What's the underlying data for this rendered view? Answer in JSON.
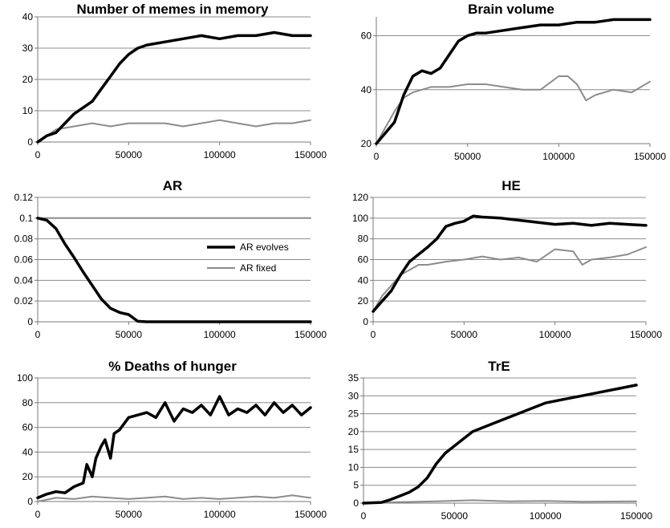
{
  "series_colors": {
    "evolves": "#000000",
    "fixed": "#8c8c8c"
  },
  "chart_data": [
    {
      "type": "line",
      "title": "Number of memes in memory",
      "xlim": [
        0,
        150000
      ],
      "ylim": [
        0,
        40
      ],
      "xticks": [
        0,
        50000,
        100000,
        150000
      ],
      "yticks": [
        0,
        10,
        20,
        30,
        40
      ],
      "ytick_labels": [
        "0",
        "10",
        "20",
        "30",
        "40"
      ],
      "grid": true,
      "series": [
        {
          "key": "evolves",
          "x": [
            0,
            5000,
            10000,
            15000,
            20000,
            25000,
            30000,
            35000,
            40000,
            45000,
            50000,
            55000,
            60000,
            70000,
            80000,
            90000,
            100000,
            110000,
            120000,
            130000,
            140000,
            150000
          ],
          "y": [
            0,
            2,
            3,
            6,
            9,
            11,
            13,
            17,
            21,
            25,
            28,
            30,
            31,
            32,
            33,
            34,
            33,
            34,
            34,
            35,
            34,
            34
          ]
        },
        {
          "key": "fixed",
          "x": [
            0,
            10000,
            20000,
            30000,
            40000,
            50000,
            60000,
            70000,
            80000,
            90000,
            100000,
            110000,
            120000,
            130000,
            140000,
            150000
          ],
          "y": [
            0,
            4,
            5,
            6,
            5,
            6,
            6,
            6,
            5,
            6,
            7,
            6,
            5,
            6,
            6,
            7
          ]
        }
      ]
    },
    {
      "type": "line",
      "title": "Brain volume",
      "xlim": [
        0,
        150000
      ],
      "ylim": [
        20,
        67
      ],
      "xticks": [
        0,
        50000,
        100000,
        150000
      ],
      "yticks": [
        20,
        40,
        60
      ],
      "ytick_labels": [
        "20",
        "40",
        "60"
      ],
      "grid": true,
      "series": [
        {
          "key": "evolves",
          "x": [
            0,
            5000,
            10000,
            15000,
            20000,
            25000,
            30000,
            35000,
            40000,
            45000,
            50000,
            55000,
            60000,
            70000,
            80000,
            90000,
            100000,
            110000,
            120000,
            130000,
            140000,
            150000
          ],
          "y": [
            20,
            24,
            28,
            38,
            45,
            47,
            46,
            48,
            53,
            58,
            60,
            61,
            61,
            62,
            63,
            64,
            64,
            65,
            65,
            66,
            66,
            66
          ]
        },
        {
          "key": "fixed",
          "x": [
            0,
            5000,
            10000,
            15000,
            20000,
            25000,
            30000,
            40000,
            50000,
            60000,
            70000,
            80000,
            90000,
            100000,
            105000,
            110000,
            115000,
            120000,
            130000,
            140000,
            150000
          ],
          "y": [
            20,
            26,
            32,
            37,
            39,
            40,
            41,
            41,
            42,
            42,
            41,
            40,
            40,
            45,
            45,
            42,
            36,
            38,
            40,
            39,
            43
          ]
        }
      ]
    },
    {
      "type": "line",
      "title": "AR",
      "xlim": [
        0,
        150000
      ],
      "ylim": [
        0,
        0.12
      ],
      "xticks": [
        0,
        50000,
        100000,
        150000
      ],
      "yticks": [
        0,
        0.02,
        0.04,
        0.06,
        0.08,
        0.1,
        0.12
      ],
      "ytick_labels": [
        "0",
        "0.02",
        "0.04",
        "0.06",
        "0.08",
        "0.1",
        "0.12"
      ],
      "grid": true,
      "legend": {
        "position": "center-right",
        "entries": [
          {
            "key": "evolves",
            "label": "AR evolves"
          },
          {
            "key": "fixed",
            "label": "AR fixed"
          }
        ]
      },
      "series": [
        {
          "key": "evolves",
          "x": [
            0,
            5000,
            10000,
            15000,
            20000,
            25000,
            30000,
            35000,
            40000,
            45000,
            50000,
            55000,
            60000,
            100000,
            150000
          ],
          "y": [
            0.1,
            0.098,
            0.09,
            0.075,
            0.062,
            0.048,
            0.035,
            0.022,
            0.013,
            0.009,
            0.007,
            0.0005,
            0,
            0,
            0
          ]
        },
        {
          "key": "fixed",
          "x": [
            0,
            150000
          ],
          "y": [
            0.1,
            0.1
          ]
        }
      ]
    },
    {
      "type": "line",
      "title": "HE",
      "xlim": [
        0,
        150000
      ],
      "ylim": [
        0,
        120
      ],
      "xticks": [
        0,
        50000,
        100000,
        150000
      ],
      "yticks": [
        0,
        20,
        40,
        60,
        80,
        100,
        120
      ],
      "ytick_labels": [
        "0",
        "20",
        "40",
        "60",
        "80",
        "100",
        "120"
      ],
      "grid": true,
      "series": [
        {
          "key": "evolves",
          "x": [
            0,
            5000,
            10000,
            15000,
            20000,
            25000,
            30000,
            35000,
            40000,
            45000,
            50000,
            55000,
            60000,
            70000,
            80000,
            90000,
            100000,
            110000,
            120000,
            130000,
            140000,
            150000
          ],
          "y": [
            10,
            20,
            30,
            45,
            58,
            65,
            72,
            80,
            92,
            95,
            97,
            102,
            101,
            100,
            98,
            96,
            94,
            95,
            93,
            95,
            94,
            93
          ]
        },
        {
          "key": "fixed",
          "x": [
            0,
            5000,
            10000,
            15000,
            20000,
            25000,
            30000,
            40000,
            50000,
            60000,
            70000,
            80000,
            90000,
            100000,
            110000,
            115000,
            120000,
            130000,
            140000,
            150000
          ],
          "y": [
            10,
            25,
            35,
            45,
            50,
            55,
            55,
            58,
            60,
            63,
            60,
            62,
            58,
            70,
            68,
            55,
            60,
            62,
            65,
            72
          ]
        }
      ]
    },
    {
      "type": "line",
      "title": "% Deaths of hunger",
      "xlim": [
        0,
        150000
      ],
      "ylim": [
        0,
        100
      ],
      "xticks": [
        0,
        50000,
        100000,
        150000
      ],
      "yticks": [
        0,
        20,
        40,
        60,
        80,
        100
      ],
      "ytick_labels": [
        "0",
        "20",
        "40",
        "60",
        "80",
        "100"
      ],
      "grid": true,
      "series": [
        {
          "key": "evolves",
          "x": [
            0,
            5000,
            10000,
            15000,
            20000,
            25000,
            27000,
            30000,
            32000,
            35000,
            37000,
            40000,
            42000,
            45000,
            50000,
            55000,
            60000,
            65000,
            70000,
            75000,
            80000,
            85000,
            90000,
            95000,
            100000,
            105000,
            110000,
            115000,
            120000,
            125000,
            130000,
            135000,
            140000,
            145000,
            150000
          ],
          "y": [
            3,
            6,
            8,
            7,
            12,
            15,
            30,
            20,
            35,
            45,
            50,
            35,
            55,
            58,
            68,
            70,
            72,
            68,
            80,
            65,
            75,
            72,
            78,
            70,
            85,
            70,
            75,
            72,
            78,
            70,
            80,
            72,
            78,
            70,
            76
          ]
        },
        {
          "key": "fixed",
          "x": [
            0,
            10000,
            20000,
            30000,
            40000,
            50000,
            60000,
            70000,
            80000,
            90000,
            100000,
            110000,
            120000,
            130000,
            140000,
            150000
          ],
          "y": [
            0,
            3,
            2,
            4,
            3,
            2,
            3,
            4,
            2,
            3,
            2,
            3,
            4,
            3,
            5,
            3
          ]
        }
      ]
    },
    {
      "type": "line",
      "title": "TrE",
      "xlim": [
        0,
        150000
      ],
      "ylim": [
        0,
        35
      ],
      "xticks": [
        0,
        50000,
        100000,
        150000
      ],
      "yticks": [
        0,
        5,
        10,
        15,
        20,
        25,
        30,
        35
      ],
      "ytick_labels": [
        "0",
        "5",
        "10",
        "15",
        "20",
        "25",
        "30",
        "35"
      ],
      "grid": true,
      "series": [
        {
          "key": "evolves",
          "x": [
            0,
            10000,
            15000,
            20000,
            25000,
            30000,
            35000,
            40000,
            45000,
            50000,
            55000,
            60000,
            70000,
            80000,
            90000,
            100000,
            110000,
            120000,
            130000,
            140000,
            150000
          ],
          "y": [
            0,
            0.2,
            1,
            2,
            3,
            4.5,
            7,
            11,
            14,
            16,
            18,
            20,
            22,
            24,
            26,
            28,
            29,
            30,
            31,
            32,
            33
          ]
        },
        {
          "key": "fixed",
          "x": [
            0,
            20000,
            40000,
            60000,
            80000,
            100000,
            120000,
            150000
          ],
          "y": [
            0,
            0.3,
            0.5,
            0.8,
            0.5,
            0.6,
            0.4,
            0.5
          ]
        }
      ]
    }
  ]
}
